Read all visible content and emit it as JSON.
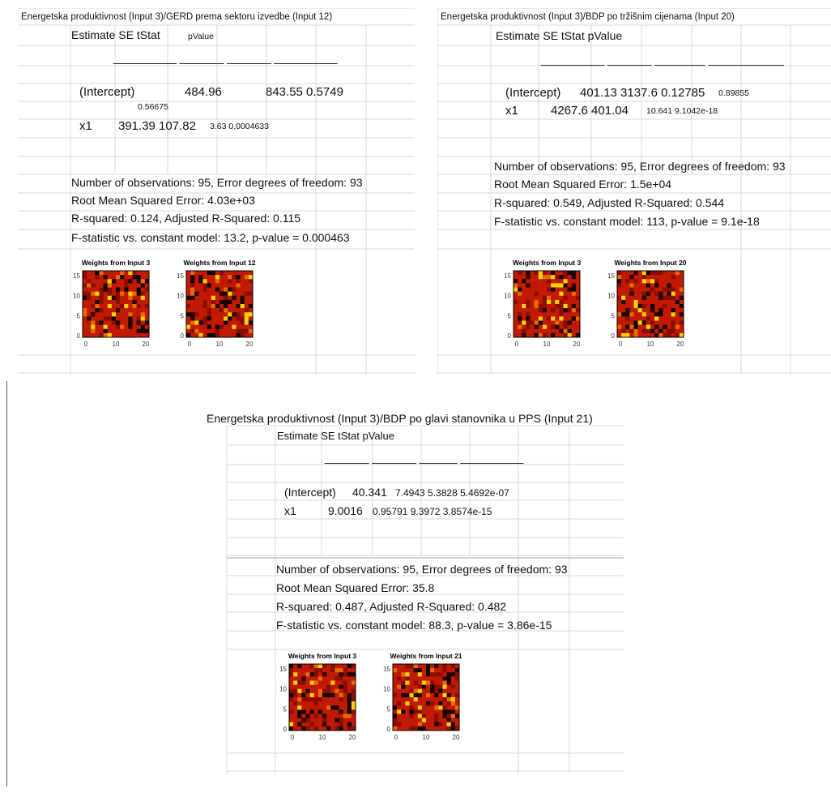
{
  "panels": [
    {
      "caption": "Energetska produktivnost (Input 3)/GERD prema sektoru izvedbe (Input 12)",
      "header": "Estimate SE   tStat",
      "header_small": "pValue",
      "underline": "__________ _______ _______ __________",
      "intercept_label": "(Intercept)",
      "intercept_estimate": "484.96",
      "intercept_rest": "843.55 0.5749",
      "intercept_wrap": "0.56675",
      "x1_label": "x1",
      "x1_main": "391.39 107.82",
      "x1_small": "3.63 0.0004633",
      "stats": [
        "Number of observations: 95, Error degrees of freedom: 93",
        "Root Mean Squared Error: 4.03e+03",
        "R-squared: 0.124, Adjusted R-Squared: 0.115",
        "F-statistic vs. constant model: 13.2, p-value = 0.000463"
      ],
      "figure": {
        "left_title": "Weights from Input 3",
        "right_title": "Weights from Input 12",
        "yticks": [
          "15",
          "10",
          "5",
          "0"
        ],
        "xticks": [
          "0",
          "10",
          "20"
        ]
      }
    },
    {
      "caption": "Energetska produktivnost (Input 3)/BDP po tržišnim cijenama (Input 20)",
      "header": "Estimate   SE    tStat    pValue",
      "underline": "__________ _______ ________ ____________",
      "intercept_label": "(Intercept)",
      "intercept_main": "401.13   3137.6  0.12785",
      "intercept_small": "0.89855",
      "x1_label": "x1",
      "x1_main": "4267.6  401.04",
      "x1_small": "10.641  9.1042e-18",
      "stats": [
        "Number of observations: 95, Error degrees of freedom: 93",
        "Root Mean Squared Error: 1.5e+04",
        "R-squared: 0.549, Adjusted R-Squared: 0.544",
        "F-statistic vs. constant model: 113, p-value = 9.1e-18"
      ],
      "figure": {
        "left_title": "Weights from Input 3",
        "right_title": "Weights from Input 20",
        "yticks": [
          "15",
          "10",
          "5",
          "0"
        ],
        "xticks": [
          "0",
          "10",
          "20"
        ]
      }
    },
    {
      "caption": "Energetska produktivnost (Input 3)/BDP po glavi stanovnika u PPS (Input 21)",
      "header": "Estimate   SE    tStat   pValue",
      "underline": "_______ _______ ______   __________",
      "intercept_label": "(Intercept)",
      "intercept_main": "40.341",
      "intercept_small": "7.4943 5.3828 5.4692e-07",
      "x1_label": "x1",
      "x1_main": "9.0016",
      "x1_small": "0.95791  9.3972    3.8574e-15",
      "stats": [
        "Number of observations: 95, Error degrees of freedom: 93",
        "Root Mean Squared Error: 35.8",
        "R-squared: 0.487, Adjusted R-Squared: 0.482",
        "F-statistic vs. constant model: 88.3, p-value = 3.86e-15"
      ],
      "figure": {
        "left_title": "Weights from Input 3",
        "right_title": "Weights from Input 21",
        "yticks": [
          "15",
          "10",
          "5",
          "0"
        ],
        "xticks": [
          "0",
          "10",
          "20"
        ]
      }
    }
  ],
  "colors": {
    "gridline": "#d9d9d9",
    "som_dark": "#1a0000",
    "som_mid": "#8b0d00",
    "som_red": "#c01a00",
    "som_orange": "#e86a00",
    "som_yellow": "#ffd000"
  }
}
